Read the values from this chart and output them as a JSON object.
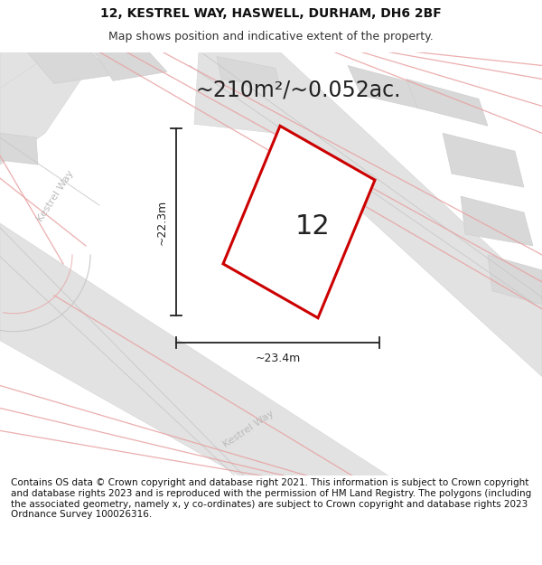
{
  "title_line1": "12, KESTREL WAY, HASWELL, DURHAM, DH6 2BF",
  "title_line2": "Map shows position and indicative extent of the property.",
  "footer_text": "Contains OS data © Crown copyright and database right 2021. This information is subject to Crown copyright and database rights 2023 and is reproduced with the permission of HM Land Registry. The polygons (including the associated geometry, namely x, y co-ordinates) are subject to Crown copyright and database rights 2023 Ordnance Survey 100026316.",
  "area_label": "~210m²/~0.052ac.",
  "property_number": "12",
  "dim_width": "~23.4m",
  "dim_height": "~22.3m",
  "map_bg": "#f5f5f5",
  "gray_band_color": "#e0e0e0",
  "gray_band_edge": "#d0d0d0",
  "pink_color": "#e8a0a0",
  "gray_line_color": "#c8c8c8",
  "property_outline_color": "#cc0000",
  "property_fill": "#ffffff",
  "street_label_color": "#bbbbbb",
  "title_fontsize": 10,
  "subtitle_fontsize": 9,
  "footer_fontsize": 7.5,
  "area_fontsize": 17,
  "num_fontsize": 22
}
